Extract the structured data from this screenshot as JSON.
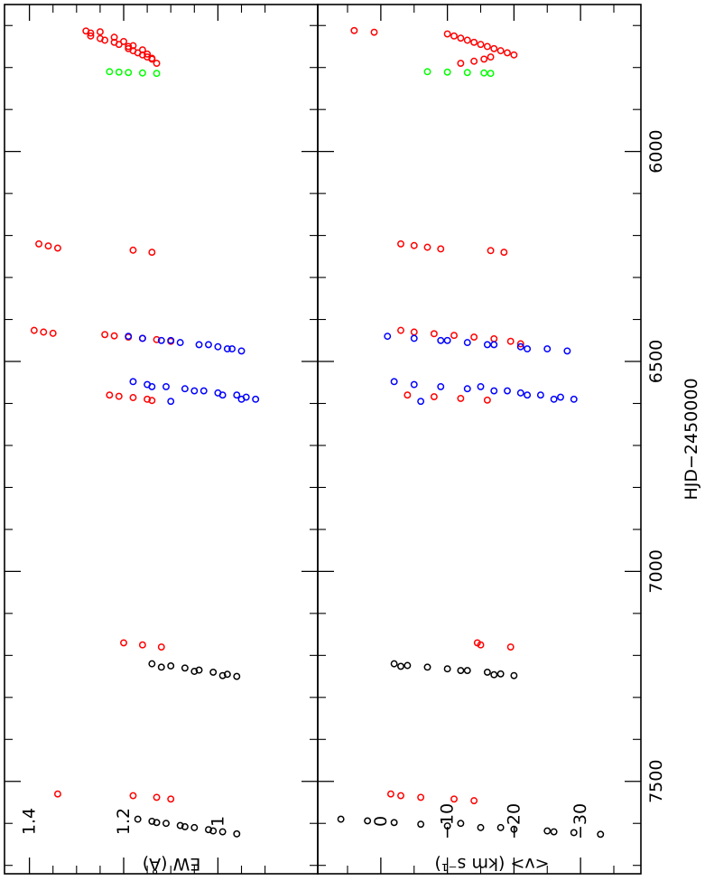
{
  "colors": {
    "red": "#ff0000",
    "blue": "#0000ff",
    "green": "#00ff00",
    "black": "#000000"
  },
  "time_axis": {
    "label": "HJD−2450000",
    "range": [
      5650,
      7720
    ],
    "tick_labels": [
      "6000",
      "6500",
      "7000",
      "7500"
    ]
  },
  "chart_data": [
    {
      "type": "scatter",
      "title": "",
      "ylabel": "EW (Å)",
      "xlabel": "HJD−2450000",
      "xlim": [
        5650,
        7720
      ],
      "ylim": [
        0.88,
        1.42
      ],
      "ytick_labels": [
        "1.4",
        "1.2",
        "1"
      ],
      "legend": "none",
      "series": [
        {
          "color": "red",
          "x": [
            5713,
            5718,
            5725,
            5731,
            5735,
            5740,
            5745,
            5750,
            5755,
            5760,
            5765,
            5770,
            5775,
            5780,
            5790,
            5715,
            5728,
            5738,
            5748,
            5758,
            5768,
            5778,
            6220,
            6225,
            6230,
            6235,
            6240,
            6426,
            6430,
            6433,
            6436,
            6439,
            6442,
            6445,
            6448,
            6452,
            6580,
            6583,
            6586,
            6590,
            6593,
            7170,
            7175,
            7180,
            7530,
            7534,
            7538,
            7542
          ],
          "y": [
            1.28,
            1.27,
            1.27,
            1.25,
            1.24,
            1.22,
            1.21,
            1.19,
            1.19,
            1.18,
            1.17,
            1.16,
            1.15,
            1.14,
            1.13,
            1.25,
            1.22,
            1.2,
            1.18,
            1.16,
            1.15,
            1.14,
            1.38,
            1.36,
            1.34,
            1.18,
            1.14,
            1.39,
            1.37,
            1.35,
            1.24,
            1.22,
            1.19,
            1.16,
            1.13,
            1.1,
            1.23,
            1.21,
            1.18,
            1.15,
            1.14,
            1.2,
            1.16,
            1.12,
            1.34,
            1.18,
            1.13,
            1.1
          ]
        },
        {
          "color": "green",
          "x": [
            5810,
            5811,
            5812,
            5813,
            5814
          ],
          "y": [
            1.23,
            1.21,
            1.19,
            1.16,
            1.13
          ]
        },
        {
          "color": "blue",
          "x": [
            6440,
            6445,
            6450,
            6455,
            6460,
            6465,
            6470,
            6475,
            6450,
            6460,
            6470,
            6548,
            6555,
            6560,
            6565,
            6570,
            6575,
            6580,
            6585,
            6590,
            6595,
            6560,
            6570,
            6580,
            6590
          ],
          "y": [
            1.19,
            1.16,
            1.12,
            1.08,
            1.04,
            1.0,
            0.97,
            0.95,
            1.1,
            1.02,
            0.98,
            1.18,
            1.15,
            1.11,
            1.07,
            1.03,
            1.0,
            0.96,
            0.94,
            0.92,
            1.1,
            1.14,
            1.05,
            0.99,
            0.95
          ]
        },
        {
          "color": "black",
          "x": [
            7220,
            7225,
            7230,
            7235,
            7240,
            7245,
            7250,
            7228,
            7238,
            7248,
            7590,
            7595,
            7600,
            7605,
            7610,
            7615,
            7620,
            7625,
            7598,
            7608,
            7618
          ],
          "y": [
            1.14,
            1.1,
            1.07,
            1.04,
            1.01,
            0.98,
            0.96,
            1.12,
            1.05,
            0.99,
            1.17,
            1.14,
            1.11,
            1.08,
            1.05,
            1.02,
            0.99,
            0.96,
            1.13,
            1.07,
            1.01
          ]
        }
      ]
    },
    {
      "type": "scatter",
      "title": "",
      "ylabel": "<v> (km s⁻¹)",
      "xlabel": "HJD−2450000",
      "xlim": [
        5650,
        7720
      ],
      "ylim": [
        7,
        -36
      ],
      "ytick_labels": [
        "0",
        "−10",
        "−20",
        "−30"
      ],
      "legend": "none",
      "series": [
        {
          "color": "red",
          "x": [
            5712,
            5716,
            5720,
            5725,
            5730,
            5735,
            5740,
            5745,
            5750,
            5755,
            5760,
            5765,
            5770,
            5775,
            5780,
            5785,
            5790,
            6220,
            6224,
            6228,
            6232,
            6236,
            6240,
            6426,
            6430,
            6434,
            6438,
            6442,
            6446,
            6452,
            6458,
            6580,
            6584,
            6588,
            6592,
            7170,
            7175,
            7180,
            7530,
            7534,
            7538,
            7542,
            7546
          ],
          "y": [
            4.0,
            1.0,
            -10.0,
            -11.0,
            -12.0,
            -13.0,
            -14.0,
            -15.0,
            -16.0,
            -17.0,
            -18.0,
            -19.0,
            -20.0,
            -16.5,
            -15.5,
            -14.0,
            -12.0,
            -3.0,
            -5.0,
            -7.0,
            -9.0,
            -16.5,
            -18.5,
            -3.0,
            -5.0,
            -8.0,
            -11.0,
            -14.0,
            -17.0,
            -19.5,
            -21.0,
            -4.0,
            -8.0,
            -12.0,
            -16.0,
            -14.5,
            -15.0,
            -19.5,
            -1.5,
            -3.0,
            -6.0,
            -11.0,
            -14.0
          ]
        },
        {
          "color": "green",
          "x": [
            5810,
            5811,
            5812,
            5813,
            5814
          ],
          "y": [
            -7.0,
            -10.0,
            -13.0,
            -15.5,
            -16.5
          ]
        },
        {
          "color": "blue",
          "x": [
            6440,
            6445,
            6450,
            6455,
            6460,
            6465,
            6470,
            6475,
            6450,
            6460,
            6470,
            6548,
            6555,
            6560,
            6565,
            6570,
            6575,
            6580,
            6585,
            6590,
            6595,
            6560,
            6570,
            6580,
            6590
          ],
          "y": [
            -1.0,
            -5.0,
            -9.0,
            -13.0,
            -17.0,
            -21.0,
            -25.0,
            -28.0,
            -10.0,
            -16.0,
            -22.0,
            -2.0,
            -5.0,
            -9.0,
            -13.0,
            -17.0,
            -21.0,
            -24.0,
            -27.0,
            -29.0,
            -6.0,
            -15.0,
            -19.0,
            -22.0,
            -26.0
          ]
        },
        {
          "color": "black",
          "x": [
            7220,
            7224,
            7228,
            7232,
            7236,
            7240,
            7244,
            7248,
            7226,
            7236,
            7246,
            7590,
            7594,
            7598,
            7602,
            7606,
            7610,
            7614,
            7618,
            7622,
            7626,
            7600,
            7610,
            7620
          ],
          "y": [
            -2.0,
            -4.0,
            -7.0,
            -10.0,
            -13.0,
            -16.0,
            -18.0,
            -20.0,
            -3.0,
            -12.0,
            -17.0,
            6.0,
            2.0,
            -2.0,
            -6.0,
            -10.0,
            -15.0,
            -20.0,
            -25.0,
            -29.0,
            -33.0,
            -12.0,
            -18.0,
            -26.0
          ]
        }
      ]
    }
  ]
}
